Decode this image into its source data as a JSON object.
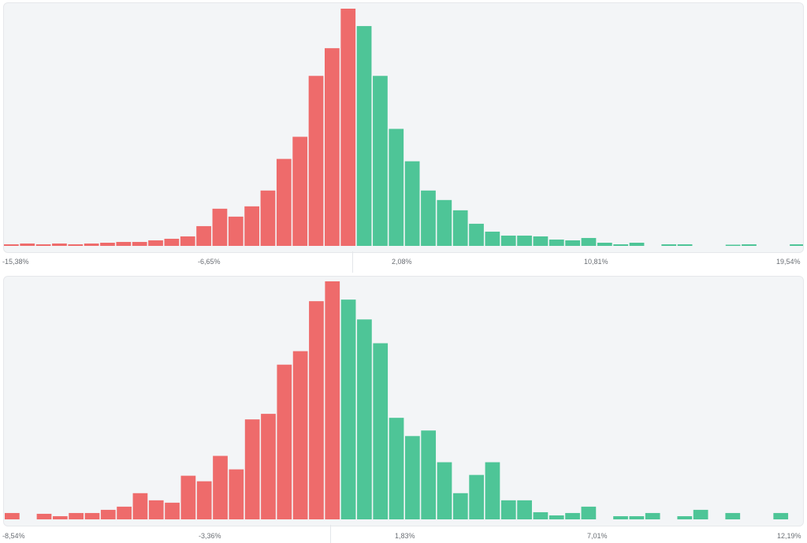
{
  "colors": {
    "negative": "#ee6b6b",
    "positive": "#4ec597",
    "panel_bg": "#f3f5f7"
  },
  "chart_data": [
    {
      "type": "bar",
      "title": "",
      "xlabel": "",
      "ylabel": "",
      "x_tick_labels": [
        "-15,38%",
        "-6,65%",
        "2,08%",
        "10,81%",
        "19,54%"
      ],
      "x_range": [
        -15.38,
        19.54
      ],
      "bin_count": 50,
      "split_index": 22,
      "values": [
        2,
        3,
        2,
        3,
        2,
        3,
        4,
        5,
        5,
        7,
        9,
        12,
        25,
        47,
        37,
        50,
        70,
        110,
        138,
        215,
        250,
        300,
        278,
        215,
        148,
        107,
        70,
        58,
        45,
        28,
        18,
        13,
        13,
        12,
        8,
        7,
        10,
        4,
        2,
        4,
        0,
        2,
        2,
        0,
        0,
        1,
        2,
        0,
        0,
        2
      ]
    },
    {
      "type": "bar",
      "title": "",
      "xlabel": "",
      "ylabel": "",
      "x_tick_labels": [
        "-8,54%",
        "-3,36%",
        "1,83%",
        "7,01%",
        "12,19%"
      ],
      "x_range": [
        -8.54,
        12.19
      ],
      "bin_count": 50,
      "split_index": 21,
      "values": [
        8,
        0,
        7,
        4,
        8,
        8,
        12,
        16,
        33,
        24,
        21,
        55,
        48,
        80,
        63,
        126,
        133,
        195,
        212,
        275,
        300,
        277,
        252,
        222,
        128,
        105,
        112,
        72,
        33,
        56,
        72,
        24,
        24,
        9,
        5,
        8,
        16,
        0,
        4,
        4,
        8,
        0,
        4,
        12,
        0,
        8,
        0,
        0,
        8,
        0
      ]
    }
  ]
}
